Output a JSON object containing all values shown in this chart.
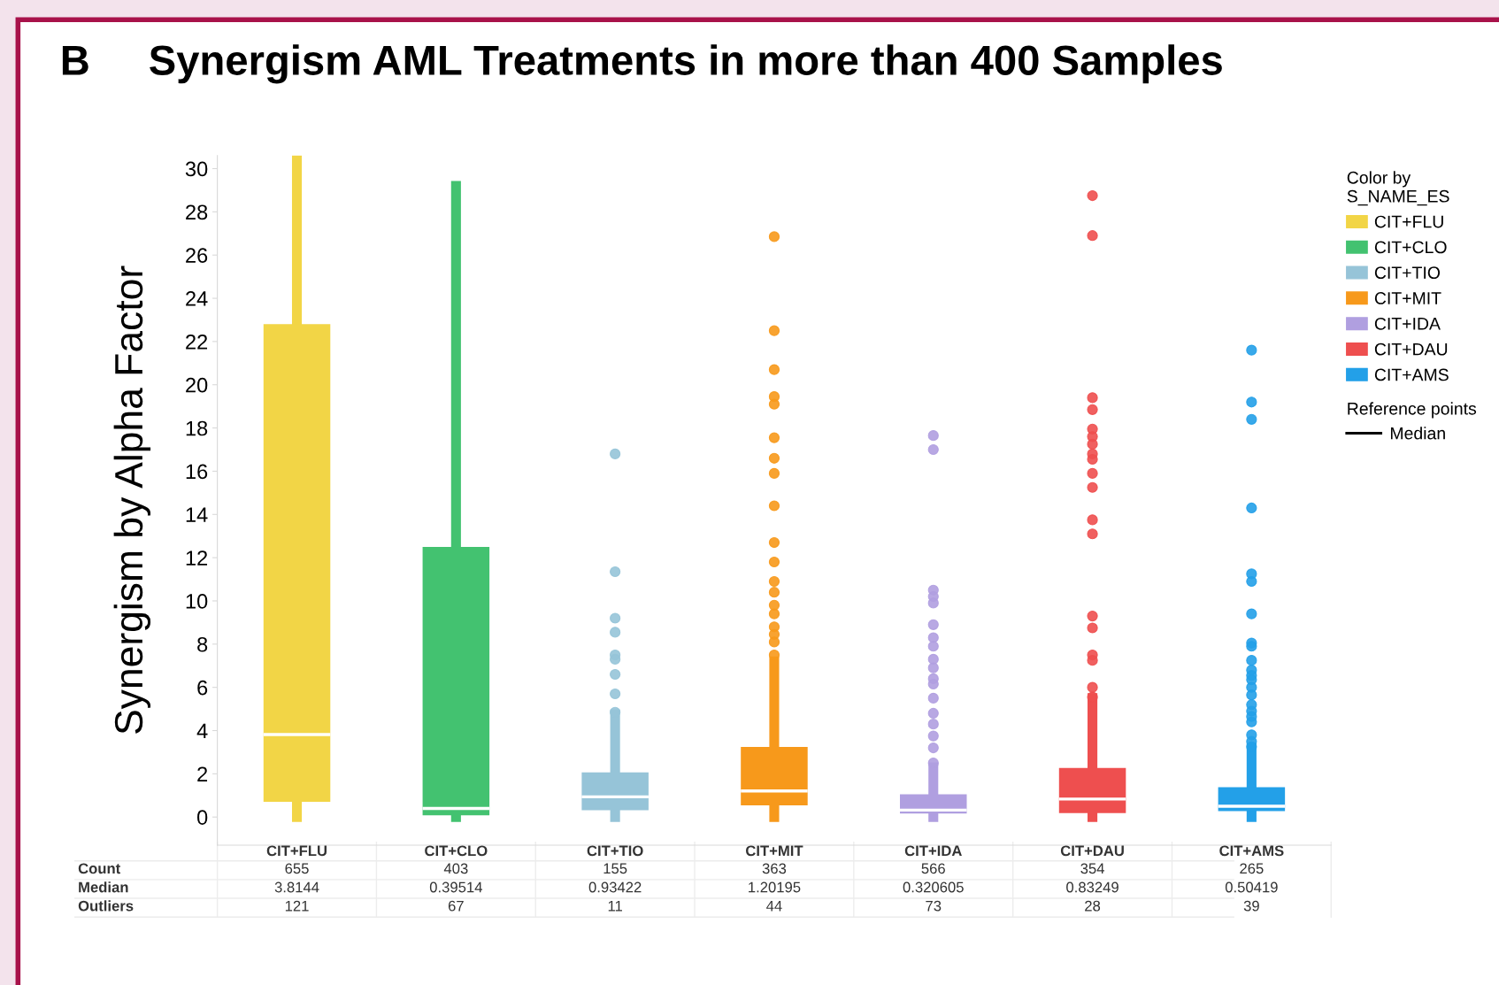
{
  "chart_data": {
    "type": "box",
    "title": "Synergism AML Treatments in more than 400 Samples",
    "ylabel": "Synergism by Alpha Factor",
    "legend_title": "Color by\nS_NAME_ES",
    "categories": [
      "CIT+FLU",
      "CIT+CLO",
      "CIT+TIO",
      "CIT+MIT",
      "CIT+IDA",
      "CIT+DAU",
      "CIT+AMS"
    ],
    "series": [
      {
        "name": "CIT+FLU",
        "color": "#f2d546",
        "boxes": [
          {
            "low": 0,
            "q1": 0.7,
            "median": 3.8144,
            "q3": 22.8,
            "high": 30.4
          },
          null,
          null,
          null,
          null,
          null,
          null
        ]
      },
      {
        "name": "CIT+CLO",
        "color": "#43c270",
        "boxes": [
          null,
          {
            "low": 0,
            "q1": 0.08,
            "median": 0.39514,
            "q3": 12.5,
            "high": 29.2
          },
          null,
          null,
          null,
          null,
          null
        ]
      },
      {
        "name": "CIT+TIO",
        "color": "#96c4d8",
        "boxes": [
          null,
          null,
          {
            "low": 0,
            "q1": 0.32,
            "median": 0.93422,
            "q3": 2.07,
            "high": 4.75,
            "outliers": [
              16.8,
              11.35,
              9.2,
              8.55,
              7.5,
              7.3,
              6.6,
              5.7,
              4.85
            ]
          },
          null,
          null,
          null,
          null
        ]
      },
      {
        "name": "CIT+MIT",
        "color": "#f7991b",
        "boxes": [
          null,
          null,
          null,
          {
            "low": 0,
            "q1": 0.54,
            "median": 1.20195,
            "q3": 3.24,
            "high": 7.2,
            "outliers": [
              26.85,
              22.5,
              20.7,
              19.45,
              19.1,
              17.55,
              16.6,
              15.9,
              14.4,
              12.7,
              11.8,
              10.9,
              10.4,
              9.8,
              9.4,
              8.8,
              8.45,
              8.1,
              7.5
            ]
          },
          null,
          null,
          null
        ]
      },
      {
        "name": "CIT+IDA",
        "color": "#b09fe0",
        "boxes": [
          null,
          null,
          null,
          null,
          {
            "low": 0,
            "q1": 0.16,
            "median": 0.320605,
            "q3": 1.05,
            "high": 2.3,
            "outliers": [
              17.65,
              17.0,
              10.5,
              10.2,
              9.9,
              8.9,
              8.3,
              7.9,
              7.3,
              6.9,
              6.4,
              6.15,
              5.5,
              4.8,
              4.3,
              3.75,
              3.2,
              2.5
            ]
          },
          null,
          null
        ]
      },
      {
        "name": "CIT+DAU",
        "color": "#ee4f4f",
        "boxes": [
          null,
          null,
          null,
          null,
          null,
          {
            "low": 0,
            "q1": 0.18,
            "median": 0.83249,
            "q3": 2.27,
            "high": 5.5,
            "outliers": [
              28.75,
              26.9,
              19.4,
              18.85,
              17.95,
              17.6,
              17.25,
              16.8,
              16.55,
              15.9,
              15.25,
              13.75,
              13.1,
              9.3,
              8.75,
              7.5,
              7.25,
              6.0,
              5.55
            ]
          },
          null
        ]
      },
      {
        "name": "CIT+AMS",
        "color": "#23a0e8",
        "boxes": [
          null,
          null,
          null,
          null,
          null,
          null,
          {
            "low": 0,
            "q1": 0.27,
            "median": 0.50419,
            "q3": 1.38,
            "high": 3.2,
            "outliers": [
              21.6,
              19.2,
              18.4,
              14.3,
              11.25,
              10.9,
              9.4,
              8.05,
              7.9,
              7.25,
              6.8,
              6.55,
              6.35,
              6.0,
              5.65,
              5.2,
              4.9,
              4.65,
              4.4,
              3.8,
              3.5,
              3.25
            ]
          }
        ]
      }
    ],
    "ylim": [
      -1.3,
      30.6
    ],
    "yticks": [
      0,
      2,
      4,
      6,
      8,
      10,
      12,
      14,
      16,
      18,
      20,
      22,
      24,
      26,
      28,
      30
    ],
    "grid": false,
    "legend": "right",
    "annotations": [
      "B",
      "Reference points",
      "Median",
      "Count",
      "655",
      "403",
      "155",
      "363",
      "566",
      "354",
      "265",
      "Median",
      "3.8144",
      "0.39514",
      "0.93422",
      "1.20195",
      "0.320605",
      "0.83249",
      "0.50419",
      "Outliers",
      "121",
      "67",
      "11",
      "44",
      "73",
      "28",
      "39"
    ]
  }
}
